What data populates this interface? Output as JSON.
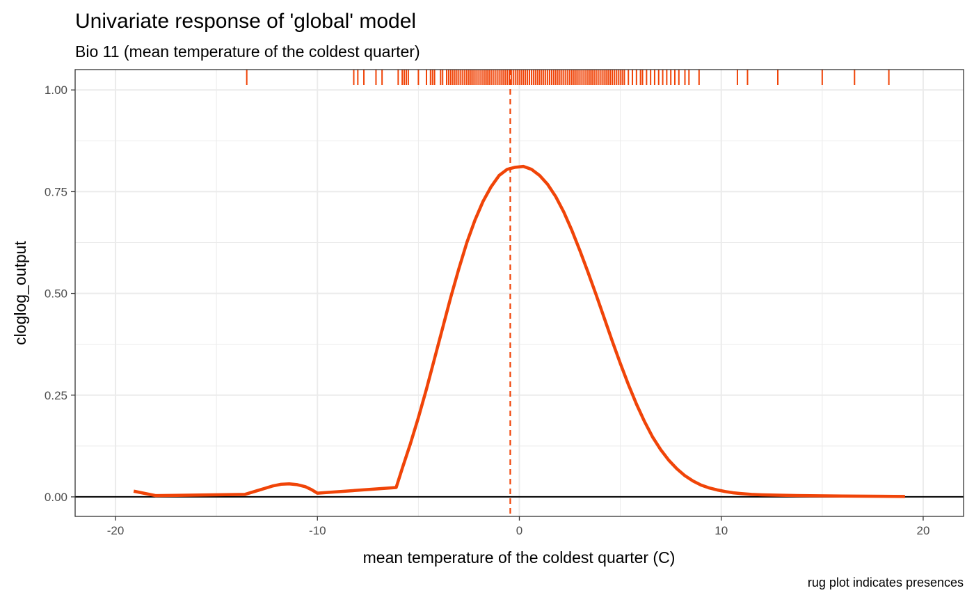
{
  "chart_data": {
    "type": "line",
    "title": "Univariate response of 'global' model",
    "subtitle": "Bio 11 (mean temperature of the coldest quarter)",
    "xlabel": "mean temperature of the coldest quarter (C)",
    "ylabel": "cloglog_output",
    "caption": "rug plot indicates presences",
    "xlim": [
      -22,
      22
    ],
    "ylim": [
      -0.048,
      1.05
    ],
    "x_ticks": [
      -20,
      -10,
      0,
      10,
      20
    ],
    "x_tick_labels": [
      "-20",
      "-10",
      "0",
      "10",
      "20"
    ],
    "y_ticks": [
      0,
      0.25,
      0.5,
      0.75,
      1
    ],
    "y_tick_labels": [
      "0.00",
      "0.25",
      "0.50",
      "0.75",
      "1.00"
    ],
    "grid": true,
    "colors": {
      "curve": "#f04408",
      "rug": "#f04408",
      "mean_line": "#f04408",
      "zero_line": "#000000",
      "grid": "#ebebeb",
      "panel_border": "#333333"
    },
    "mean_line_x": -0.45,
    "series": [
      {
        "x": [
          -19.1,
          -18.0,
          -13.6,
          -12.8,
          -12.2,
          -11.8,
          -11.4,
          -11.0,
          -10.6,
          -10.3,
          -10.0,
          -6.1,
          -5.8,
          -5.4,
          -5.0,
          -4.6,
          -4.2,
          -3.8,
          -3.4,
          -3.0,
          -2.6,
          -2.2,
          -1.8,
          -1.4,
          -1.0,
          -0.6,
          -0.2,
          0.2,
          0.6,
          1.0,
          1.4,
          1.8,
          2.2,
          2.6,
          3.0,
          3.4,
          3.8,
          4.2,
          4.6,
          5.0,
          5.4,
          5.8,
          6.2,
          6.6,
          7.0,
          7.4,
          7.8,
          8.2,
          8.6,
          9.0,
          9.4,
          9.8,
          10.2,
          10.6,
          11.0,
          11.5,
          12.0,
          13.0,
          14.0,
          16.0,
          19.1
        ],
        "y": [
          0.014,
          0.003,
          0.006,
          0.018,
          0.027,
          0.031,
          0.032,
          0.03,
          0.025,
          0.018,
          0.009,
          0.023,
          0.07,
          0.13,
          0.195,
          0.265,
          0.34,
          0.415,
          0.49,
          0.56,
          0.625,
          0.68,
          0.726,
          0.762,
          0.79,
          0.805,
          0.81,
          0.812,
          0.805,
          0.79,
          0.768,
          0.738,
          0.7,
          0.655,
          0.605,
          0.552,
          0.497,
          0.44,
          0.383,
          0.328,
          0.276,
          0.228,
          0.185,
          0.147,
          0.116,
          0.09,
          0.069,
          0.052,
          0.039,
          0.029,
          0.022,
          0.017,
          0.013,
          0.01,
          0.008,
          0.006,
          0.005,
          0.004,
          0.003,
          0.002,
          0.001
        ]
      }
    ],
    "rug_x": [
      -13.5,
      -8.2,
      -8.0,
      -7.7,
      -7.1,
      -6.8,
      -6.0,
      -5.8,
      -5.7,
      -5.6,
      -5.5,
      -5.0,
      -4.6,
      -4.4,
      -4.3,
      -4.2,
      -3.9,
      -3.8,
      -3.6,
      -3.5,
      -3.4,
      -3.3,
      -3.2,
      -3.1,
      -3.0,
      -2.9,
      -2.8,
      -2.7,
      -2.6,
      -2.5,
      -2.4,
      -2.3,
      -2.2,
      -2.1,
      -2.0,
      -1.9,
      -1.8,
      -1.7,
      -1.6,
      -1.5,
      -1.4,
      -1.3,
      -1.2,
      -1.1,
      -1.0,
      -0.9,
      -0.8,
      -0.7,
      -0.6,
      -0.5,
      -0.4,
      -0.3,
      -0.2,
      -0.1,
      0.0,
      0.1,
      0.2,
      0.3,
      0.4,
      0.5,
      0.6,
      0.7,
      0.8,
      0.9,
      1.0,
      1.1,
      1.2,
      1.3,
      1.4,
      1.5,
      1.6,
      1.7,
      1.8,
      1.9,
      2.0,
      2.1,
      2.2,
      2.3,
      2.4,
      2.5,
      2.6,
      2.7,
      2.8,
      2.9,
      3.0,
      3.1,
      3.2,
      3.3,
      3.4,
      3.5,
      3.6,
      3.7,
      3.8,
      3.9,
      4.0,
      4.1,
      4.2,
      4.3,
      4.4,
      4.5,
      4.6,
      4.7,
      4.8,
      4.9,
      5.0,
      5.1,
      5.2,
      5.4,
      5.6,
      5.8,
      6.0,
      6.1,
      6.3,
      6.5,
      6.7,
      6.9,
      7.1,
      7.3,
      7.5,
      7.7,
      7.9,
      8.2,
      8.4,
      8.9,
      10.8,
      11.3,
      12.8,
      15.0,
      16.6,
      18.3
    ]
  }
}
